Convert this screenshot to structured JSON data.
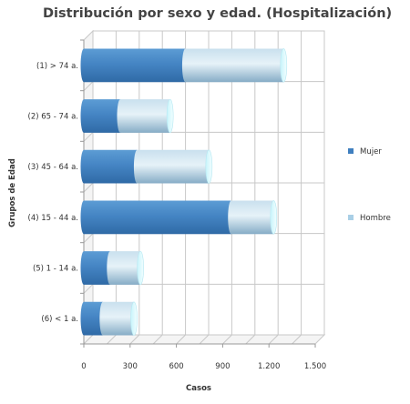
{
  "chart_data": {
    "type": "bar",
    "orientation": "horizontal",
    "stacked": true,
    "style": "3d-cylinder",
    "title": "Distribución por sexo y edad. (Hospitalización)",
    "xlabel": "Casos",
    "ylabel": "Grupos de Edad",
    "categories": [
      "(1) > 74 a.",
      "(2) 65 - 74 a.",
      "(3) 45 - 64 a.",
      "(4) 15 - 44 a.",
      "(5) 1 - 14 a.",
      "(6) < 1 a."
    ],
    "series": [
      {
        "name": "Mujer",
        "color": "#3f7fbf",
        "values": [
          658,
          236,
          345,
          955,
          170,
          123
        ]
      },
      {
        "name": "Hombre",
        "color": "#a9cfe6",
        "values": [
          637,
          323,
          466,
          275,
          197,
          202
        ]
      }
    ],
    "xlim": [
      0,
      1500
    ],
    "xticks": [
      "0",
      "300",
      "600",
      "900",
      "1.200",
      "1.500"
    ],
    "grid": true,
    "legend_position": "right"
  }
}
